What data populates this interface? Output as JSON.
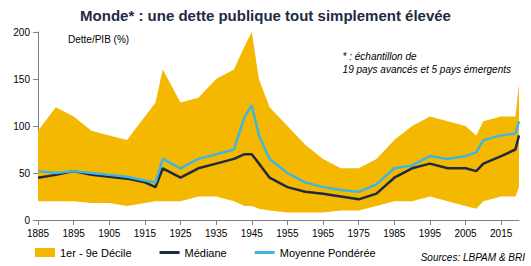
{
  "chart_data": {
    "type": "line",
    "title": "Monde* : une dette publique tout simplement élevée",
    "y_label": "Dette/PIB (%)",
    "annotation": "* : échantillon de\n19 pays avancés et 5 pays émergents",
    "source": "Sources: LBPAM & BRI",
    "x": [
      1885,
      1890,
      1895,
      1900,
      1905,
      1910,
      1915,
      1918,
      1920,
      1925,
      1930,
      1935,
      1940,
      1943,
      1945,
      1947,
      1950,
      1955,
      1960,
      1965,
      1970,
      1975,
      1980,
      1985,
      1990,
      1995,
      2000,
      2005,
      2008,
      2010,
      2015,
      2019,
      2020
    ],
    "xlim": [
      1885,
      2020
    ],
    "xticks": [
      1885,
      1895,
      1905,
      1915,
      1925,
      1935,
      1945,
      1955,
      1965,
      1975,
      1985,
      1995,
      2005,
      2015
    ],
    "ylim": [
      0,
      200
    ],
    "yticks": [
      0,
      50,
      100,
      150,
      200
    ],
    "grid": false,
    "legend": "bottom",
    "series": [
      {
        "name": "1er - 9e Décile",
        "type": "band",
        "color": "#f5b800",
        "lower": [
          20,
          20,
          20,
          18,
          18,
          15,
          18,
          20,
          20,
          20,
          25,
          25,
          20,
          15,
          15,
          12,
          10,
          8,
          8,
          8,
          10,
          10,
          15,
          20,
          20,
          25,
          20,
          15,
          12,
          20,
          25,
          25,
          35
        ],
        "upper": [
          95,
          120,
          110,
          95,
          90,
          85,
          110,
          125,
          160,
          125,
          130,
          150,
          160,
          185,
          200,
          150,
          120,
          100,
          80,
          65,
          55,
          55,
          65,
          85,
          100,
          110,
          105,
          100,
          90,
          105,
          110,
          110,
          145
        ]
      },
      {
        "name": "Médiane",
        "type": "line",
        "color": "#1f2a44",
        "values": [
          45,
          48,
          52,
          48,
          46,
          44,
          40,
          35,
          55,
          45,
          55,
          60,
          65,
          70,
          70,
          60,
          45,
          35,
          30,
          28,
          25,
          22,
          28,
          45,
          55,
          60,
          55,
          55,
          52,
          60,
          68,
          75,
          90
        ]
      },
      {
        "name": "Moyenne Pondérée",
        "type": "line",
        "color": "#3fb6e0",
        "values": [
          52,
          50,
          52,
          50,
          48,
          46,
          42,
          40,
          65,
          55,
          65,
          70,
          75,
          110,
          122,
          90,
          65,
          50,
          40,
          35,
          32,
          30,
          38,
          55,
          58,
          68,
          65,
          68,
          72,
          85,
          90,
          92,
          105
        ]
      }
    ]
  }
}
